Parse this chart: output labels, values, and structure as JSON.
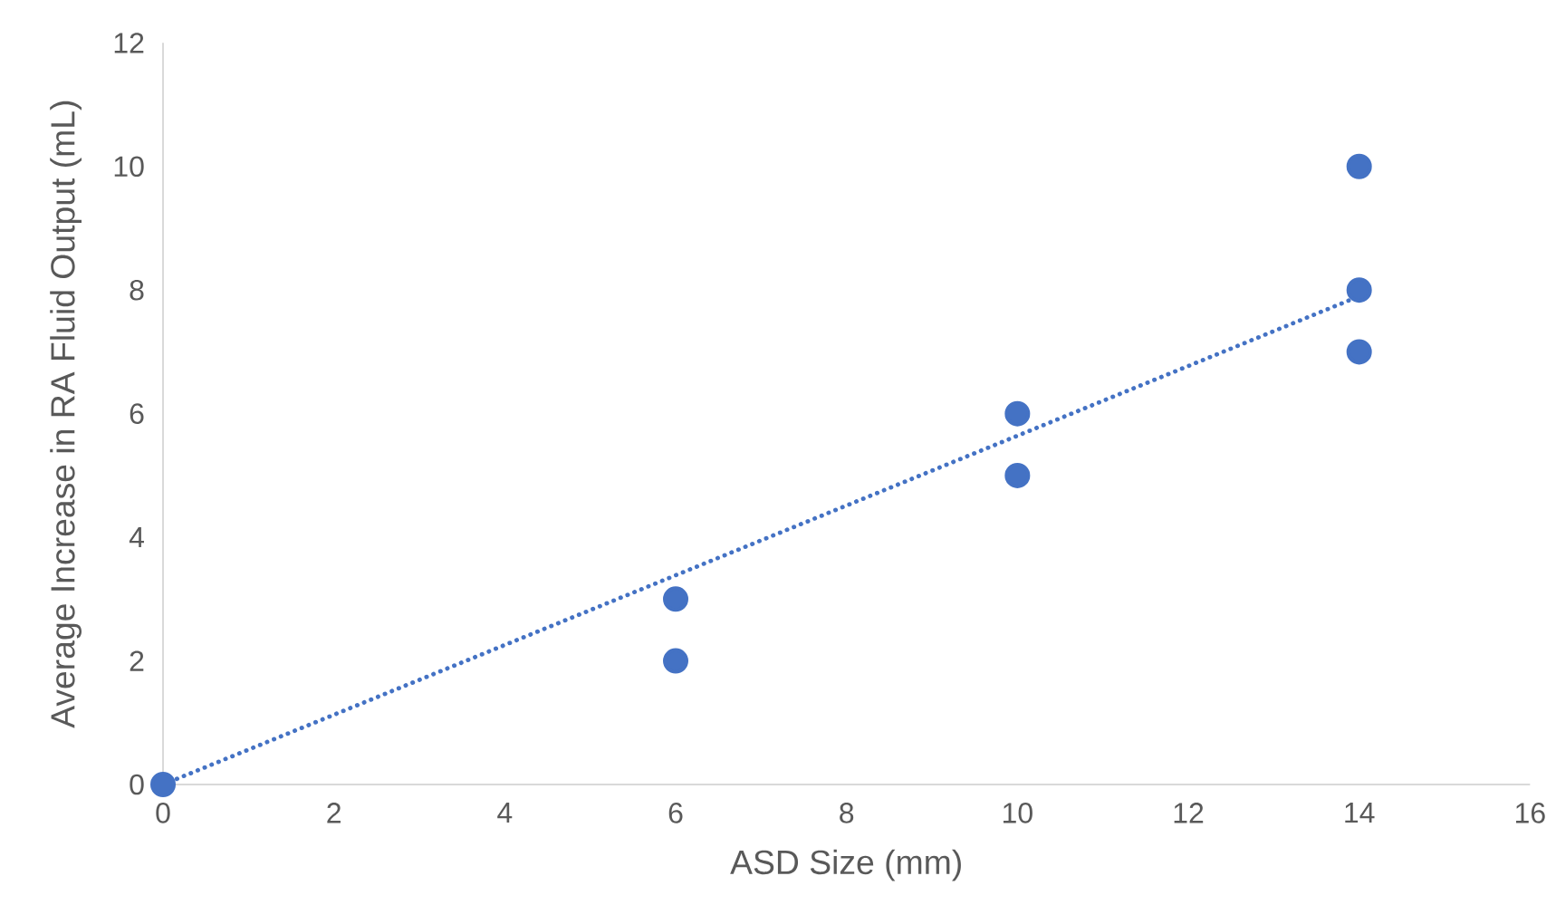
{
  "chart_data": {
    "type": "scatter",
    "xlabel": "ASD Size (mm)",
    "ylabel": "Average Increase in RA Fluid Output (mL)",
    "xlim": [
      0,
      16
    ],
    "ylim": [
      0,
      12
    ],
    "xticks": [
      0,
      2,
      4,
      6,
      8,
      10,
      12,
      14,
      16
    ],
    "yticks": [
      0,
      2,
      4,
      6,
      8,
      10,
      12
    ],
    "grid": false,
    "series": [
      {
        "color": "#4472c4",
        "marker": "circle",
        "x": [
          0,
          6,
          6,
          10,
          10,
          14,
          14,
          14
        ],
        "values": [
          0,
          3,
          2,
          6,
          5,
          10,
          8,
          7
        ]
      },
      {
        "type": "line",
        "color": "#4472c4",
        "line_style": "dotted",
        "x": [
          0,
          14
        ],
        "values": [
          0,
          7.9
        ]
      }
    ]
  }
}
